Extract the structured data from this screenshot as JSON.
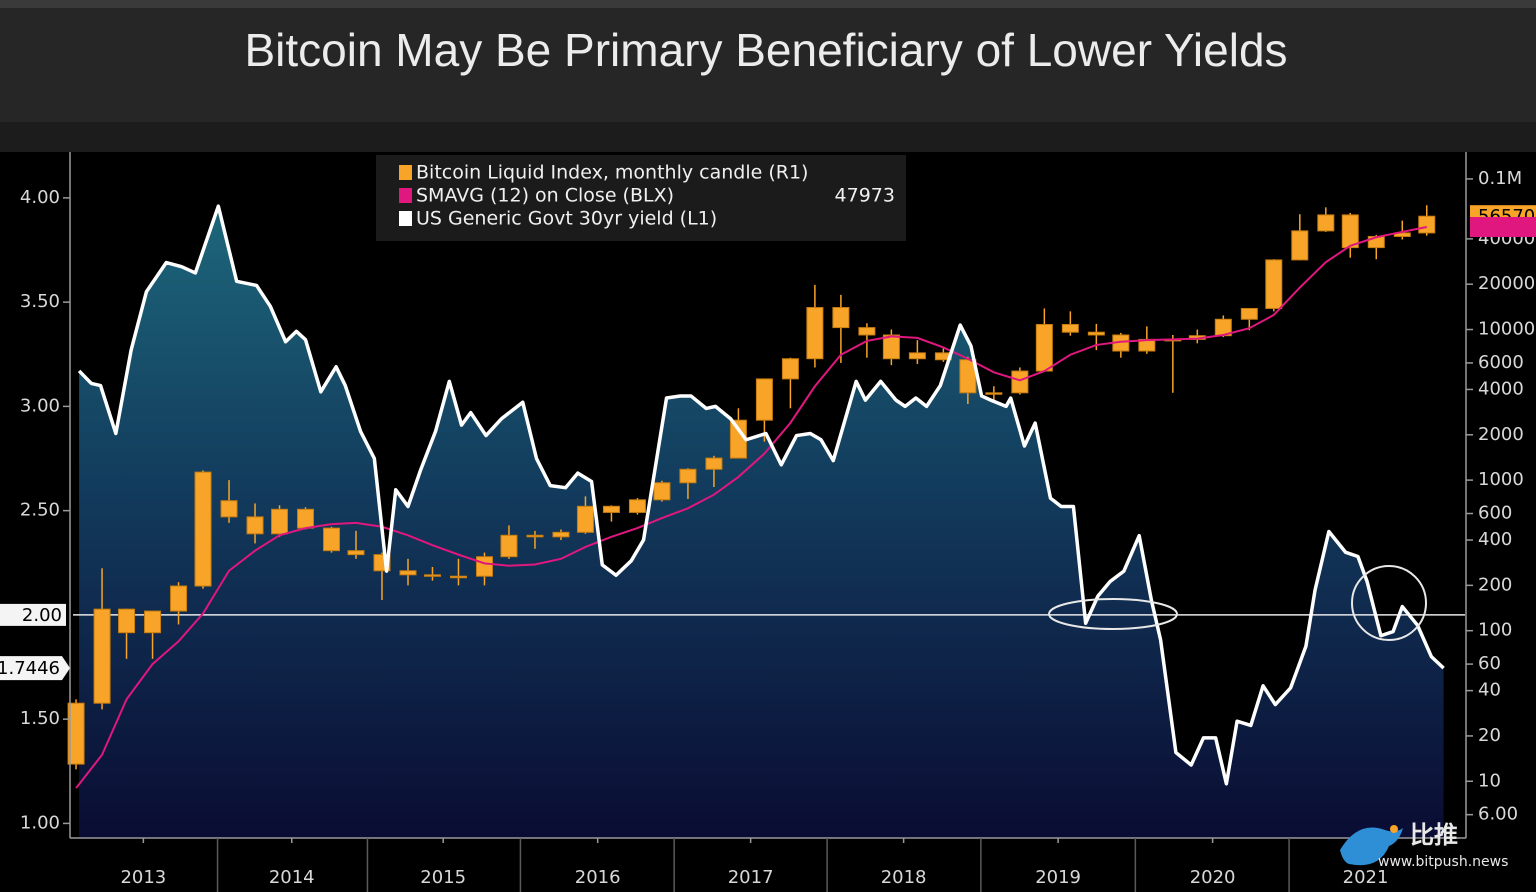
{
  "chart_data": {
    "type": "combo",
    "title": "Bitcoin May Be Primary Beneficiary of Lower Yields",
    "xlim": [
      2012.98,
      2022.08
    ],
    "xticks": [
      {
        "value": 2013.44,
        "label": "2013"
      },
      {
        "value": 2014.41,
        "label": "2014"
      },
      {
        "value": 2015.4,
        "label": "2015"
      },
      {
        "value": 2016.41,
        "label": "2016"
      },
      {
        "value": 2017.41,
        "label": "2017"
      },
      {
        "value": 2018.41,
        "label": "2018"
      },
      {
        "value": 2019.42,
        "label": "2019"
      },
      {
        "value": 2020.43,
        "label": "2020"
      },
      {
        "value": 2021.43,
        "label": "2021"
      }
    ],
    "ylim": [
      0.93,
      4.22
    ],
    "yticks": [
      {
        "value": 1,
        "label": "1.00"
      },
      {
        "value": 1.5,
        "label": "1.50"
      },
      {
        "value": 2.5,
        "label": "2.50"
      },
      {
        "value": 3,
        "label": "3.00"
      },
      {
        "value": 3.5,
        "label": "3.50"
      },
      {
        "value": 4,
        "label": "4.00"
      }
    ],
    "reference_line": {
      "value": 2,
      "label": "2.00"
    },
    "y2lim": [
      4.2,
      151000
    ],
    "y2scale": "log",
    "y2ticks": [
      {
        "value": 6,
        "label": "6.00"
      },
      10,
      20,
      40,
      60,
      100,
      200,
      400,
      600,
      1000,
      2000,
      4000,
      6000,
      10000,
      20000,
      40000,
      {
        "value": 100000,
        "label": "0.1M"
      }
    ],
    "legend": "top-center",
    "series": [
      {
        "name": "Bitcoin Liquid Index, monthly candle (R1)",
        "type": "candlestick",
        "axis": "y2",
        "color": "#f7a428",
        "x": [
          2013.0,
          2013.17,
          2013.33,
          2013.5,
          2013.67,
          2013.83,
          2014.0,
          2014.17,
          2014.33,
          2014.5,
          2014.67,
          2014.83,
          2015.0,
          2015.17,
          2015.33,
          2015.5,
          2015.67,
          2015.83,
          2016.0,
          2016.17,
          2016.33,
          2016.5,
          2016.67,
          2016.83,
          2017.0,
          2017.17,
          2017.33,
          2017.5,
          2017.67,
          2017.83,
          2018.0,
          2018.17,
          2018.33,
          2018.5,
          2018.67,
          2018.83,
          2019.0,
          2019.17,
          2019.33,
          2019.5,
          2019.67,
          2019.83,
          2020.0,
          2020.17,
          2020.33,
          2020.5,
          2020.67,
          2020.83,
          2021.0,
          2021.17,
          2021.33,
          2021.5,
          2021.67,
          2021.83
        ],
        "open": [
          13,
          33,
          139,
          97,
          135,
          198,
          730,
          570,
          440,
          640,
          480,
          340,
          320,
          250,
          235,
          230,
          230,
          310,
          430,
          420,
          450,
          670,
          610,
          740,
          960,
          1180,
          1400,
          2500,
          4700,
          6400,
          14000,
          10300,
          9200,
          6400,
          7000,
          6300,
          3800,
          3800,
          5300,
          10800,
          9600,
          9200,
          7200,
          8600,
          8600,
          9100,
          11700,
          13800,
          29000,
          45200,
          57700,
          35000,
          41500,
          43800
        ],
        "high": [
          35,
          260,
          140,
          135,
          210,
          1160,
          1000,
          700,
          680,
          660,
          490,
          460,
          330,
          300,
          265,
          300,
          330,
          500,
          460,
          470,
          780,
          680,
          760,
          990,
          1200,
          1450,
          3000,
          4700,
          6500,
          19800,
          17000,
          11000,
          10000,
          8500,
          7500,
          6600,
          4200,
          5600,
          13800,
          13200,
          10900,
          9500,
          10500,
          9200,
          10000,
          12400,
          13900,
          29300,
          58300,
          64800,
          59500,
          42500,
          52900,
          66900
        ],
        "low": [
          12,
          30,
          65,
          65,
          110,
          190,
          520,
          380,
          420,
          470,
          330,
          300,
          160,
          200,
          215,
          200,
          200,
          300,
          350,
          400,
          440,
          530,
          590,
          720,
          750,
          900,
          1400,
          1800,
          3000,
          5600,
          6000,
          6500,
          5800,
          5900,
          6100,
          3200,
          3350,
          3700,
          5300,
          9100,
          7300,
          6500,
          6900,
          3800,
          8100,
          8900,
          9900,
          13200,
          28800,
          44500,
          30000,
          29300,
          39600,
          42000
        ],
        "close": [
          33,
          139,
          97,
          135,
          198,
          1130,
          570,
          440,
          640,
          480,
          340,
          320,
          250,
          235,
          230,
          230,
          310,
          430,
          420,
          450,
          670,
          610,
          740,
          960,
          1180,
          1400,
          2500,
          4700,
          6400,
          14000,
          10300,
          9200,
          6400,
          7000,
          6300,
          3800,
          3800,
          5300,
          10800,
          9600,
          9200,
          7200,
          8600,
          8600,
          9100,
          11700,
          13800,
          29000,
          45200,
          57700,
          35000,
          41500,
          43800,
          56570
        ]
      },
      {
        "name": "SMAVG (12)  on Close (BLX)",
        "type": "line",
        "axis": "y2",
        "color": "#e0177f",
        "x": [
          2013.0,
          2013.17,
          2013.33,
          2013.5,
          2013.67,
          2013.83,
          2014.0,
          2014.17,
          2014.33,
          2014.5,
          2014.67,
          2014.83,
          2015.0,
          2015.17,
          2015.33,
          2015.5,
          2015.67,
          2015.83,
          2016.0,
          2016.17,
          2016.33,
          2016.5,
          2016.67,
          2016.83,
          2017.0,
          2017.17,
          2017.33,
          2017.5,
          2017.67,
          2017.83,
          2018.0,
          2018.17,
          2018.33,
          2018.5,
          2018.67,
          2018.83,
          2019.0,
          2019.17,
          2019.33,
          2019.5,
          2019.67,
          2019.83,
          2020.0,
          2020.17,
          2020.33,
          2020.5,
          2020.67,
          2020.83,
          2021.0,
          2021.17,
          2021.33,
          2021.5,
          2021.67,
          2021.83
        ],
        "values": [
          9,
          15,
          35,
          60,
          85,
          130,
          250,
          340,
          430,
          480,
          510,
          520,
          490,
          430,
          370,
          320,
          280,
          270,
          275,
          300,
          360,
          420,
          480,
          560,
          650,
          800,
          1050,
          1500,
          2400,
          4200,
          6800,
          8400,
          9000,
          8800,
          7600,
          6400,
          5200,
          4600,
          5300,
          6800,
          7900,
          8300,
          8500,
          8600,
          8700,
          9200,
          10200,
          12500,
          19000,
          28000,
          36000,
          41000,
          44500,
          47973
        ]
      },
      {
        "name": "US Generic Govt 30yr yield (L1)",
        "type": "area",
        "color": "#ffffff",
        "x": [
          2013.02,
          2013.1,
          2013.16,
          2013.26,
          2013.36,
          2013.46,
          2013.59,
          2013.69,
          2013.78,
          2013.93,
          2014.05,
          2014.18,
          2014.27,
          2014.37,
          2014.44,
          2014.5,
          2014.6,
          2014.7,
          2014.76,
          2014.86,
          2014.95,
          2015.03,
          2015.09,
          2015.17,
          2015.25,
          2015.35,
          2015.44,
          2015.52,
          2015.58,
          2015.68,
          2015.78,
          2015.92,
          2016.01,
          2016.1,
          2016.2,
          2016.28,
          2016.37,
          2016.44,
          2016.53,
          2016.63,
          2016.71,
          2016.86,
          2016.95,
          2017.02,
          2017.12,
          2017.18,
          2017.28,
          2017.38,
          2017.51,
          2017.61,
          2017.71,
          2017.8,
          2017.87,
          2017.95,
          2018.1,
          2018.16,
          2018.26,
          2018.36,
          2018.42,
          2018.49,
          2018.56,
          2018.65,
          2018.78,
          2018.85,
          2018.92,
          2018.98,
          2019.08,
          2019.11,
          2019.2,
          2019.27,
          2019.37,
          2019.44,
          2019.52,
          2019.6,
          2019.68,
          2019.76,
          2019.85,
          2019.95,
          2020.03,
          2020.09,
          2020.19,
          2020.29,
          2020.37,
          2020.45,
          2020.52,
          2020.59,
          2020.68,
          2020.76,
          2020.84,
          2020.94,
          2021.04,
          2021.1,
          2021.19,
          2021.3,
          2021.38,
          2021.44,
          2021.53,
          2021.61,
          2021.67,
          2021.77,
          2021.86,
          2021.94
        ],
        "values": [
          3.17,
          3.11,
          3.1,
          2.87,
          3.27,
          3.55,
          3.69,
          3.67,
          3.64,
          3.96,
          3.6,
          3.58,
          3.48,
          3.31,
          3.36,
          3.32,
          3.07,
          3.19,
          3.1,
          2.88,
          2.75,
          2.21,
          2.6,
          2.52,
          2.69,
          2.88,
          3.12,
          2.91,
          2.97,
          2.86,
          2.94,
          3.02,
          2.75,
          2.62,
          2.61,
          2.68,
          2.64,
          2.24,
          2.19,
          2.26,
          2.36,
          3.04,
          3.05,
          3.05,
          2.99,
          3.0,
          2.94,
          2.84,
          2.87,
          2.72,
          2.86,
          2.87,
          2.84,
          2.74,
          3.12,
          3.03,
          3.12,
          3.03,
          3.0,
          3.04,
          3.0,
          3.1,
          3.39,
          3.29,
          3.05,
          3.03,
          3.0,
          3.04,
          2.81,
          2.92,
          2.56,
          2.52,
          2.52,
          1.96,
          2.09,
          2.16,
          2.21,
          2.38,
          2.07,
          1.88,
          1.34,
          1.28,
          1.41,
          1.41,
          1.19,
          1.49,
          1.47,
          1.66,
          1.57,
          1.65,
          1.85,
          2.12,
          2.4,
          2.3,
          2.28,
          2.16,
          1.9,
          1.92,
          2.04,
          1.95,
          1.8,
          1.7446
        ]
      }
    ],
    "watermark": {
      "brand": "比推",
      "url": "www.bitpush.news"
    }
  }
}
